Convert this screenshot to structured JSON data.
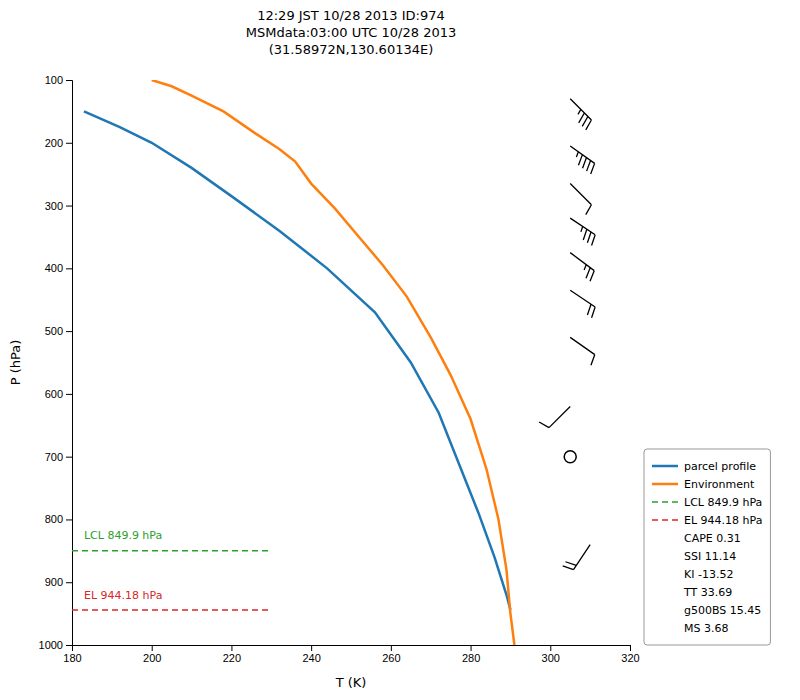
{
  "chart_data": {
    "type": "line",
    "title": "12:29 JST 10/28 2013  ID:974\nMSMdata:03:00 UTC 10/28 2013\n(31.58972N,130.60134E)",
    "xlabel": "T (K)",
    "ylabel": "P (hPa)",
    "xlim": [
      180,
      320
    ],
    "ylim": [
      1000,
      100
    ],
    "xticks": [
      180,
      200,
      220,
      240,
      260,
      280,
      300,
      320
    ],
    "yticks": [
      100,
      200,
      300,
      400,
      500,
      600,
      700,
      800,
      900,
      1000
    ],
    "grid": false,
    "legend": "lower right",
    "series": [
      {
        "name": "parcel profile",
        "color": "#1f77b4",
        "line_style": "solid",
        "x": [
          183,
          192,
          200,
          210,
          220,
          232,
          244,
          256,
          265,
          272,
          277,
          282,
          286,
          289,
          290
        ],
        "values": [
          150,
          175,
          200,
          240,
          285,
          340,
          400,
          470,
          550,
          630,
          710,
          790,
          860,
          920,
          944
        ]
      },
      {
        "name": "Environment",
        "color": "#ff7f0e",
        "line_style": "solid",
        "x": [
          200,
          205,
          210,
          218,
          226,
          232,
          236,
          240,
          246,
          252,
          258,
          264,
          270,
          275,
          280,
          284,
          287,
          289,
          290,
          291
        ],
        "values": [
          100,
          110,
          125,
          150,
          185,
          210,
          230,
          265,
          305,
          350,
          395,
          445,
          510,
          570,
          640,
          720,
          800,
          880,
          950,
          1000
        ]
      },
      {
        "name": "LCL 849.9 hPa",
        "color": "#2ca02c",
        "line_style": "dashed",
        "x": [
          180,
          230
        ],
        "values": [
          849.9,
          849.9
        ]
      },
      {
        "name": "EL 944.18 hPa",
        "color": "#d62728",
        "line_style": "dashed",
        "x": [
          180,
          230
        ],
        "values": [
          944.18,
          944.18
        ]
      }
    ],
    "annotations": [
      {
        "text": "LCL 849.9 hPa",
        "x": 183,
        "y": 831.9,
        "color": "#2ca02c"
      },
      {
        "text": "EL 944.18 hPa",
        "x": 183,
        "y": 926.18,
        "color": "#d62728"
      }
    ],
    "legend_texts": [
      "CAPE 0.31",
      "SSI 11.14",
      "KI -13.52",
      "TT 33.69",
      "g500BS 15.45",
      "MS 3.68"
    ],
    "barbs": {
      "x": [
        305,
        305,
        305,
        305,
        305,
        305,
        305,
        305,
        305,
        310
      ],
      "p": [
        130,
        205,
        265,
        320,
        375,
        435,
        510,
        620,
        700,
        840
      ],
      "u": [
        -25,
        -35,
        -8,
        -30,
        -20,
        -15,
        -10,
        8,
        0,
        12
      ],
      "v": [
        25,
        25,
        8,
        20,
        15,
        10,
        7,
        8,
        0,
        18
      ]
    }
  }
}
